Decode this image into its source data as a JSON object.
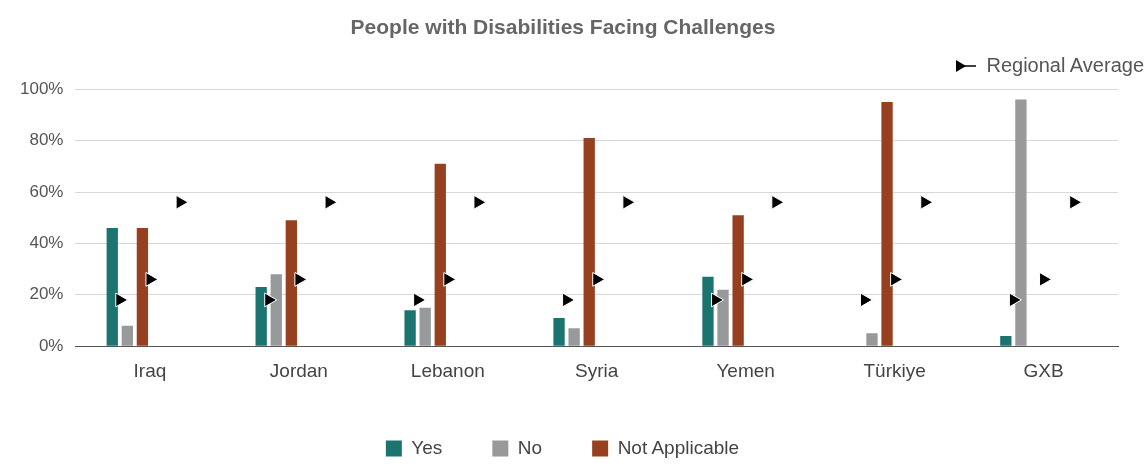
{
  "chart_data": {
    "type": "bar",
    "title": "People with Disabilities Facing Challenges",
    "categories": [
      "Iraq",
      "Jordan",
      "Lebanon",
      "Syria",
      "Yemen",
      "Türkiye",
      "GXB"
    ],
    "series": [
      {
        "name": "Yes",
        "color": "#1b7470",
        "values": [
          46,
          23,
          14,
          11,
          27,
          null,
          4
        ]
      },
      {
        "name": "No",
        "color": "#98999b",
        "values": [
          8,
          28,
          15,
          7,
          22,
          5,
          96
        ]
      },
      {
        "name": "Not Applicable",
        "color": "#97401f",
        "values": [
          46,
          49,
          71,
          81,
          51,
          95,
          null
        ]
      },
      {
        "type": "scatter",
        "name": "Regional Average",
        "color": "#000000",
        "values": [
          18,
          18,
          18,
          18,
          18,
          18,
          18
        ]
      },
      {
        "type": "scatter",
        "color": "#000000",
        "values": [
          26,
          26,
          26,
          26,
          26,
          26,
          26
        ]
      },
      {
        "type": "scatter",
        "color": "#000000",
        "values": [
          56,
          56,
          56,
          56,
          56,
          56,
          56
        ]
      }
    ],
    "ylim": [
      0,
      100
    ],
    "yticks": [
      {
        "value": 0,
        "label": "0%"
      },
      {
        "value": 20,
        "label": "20%"
      },
      {
        "value": 40,
        "label": "40%"
      },
      {
        "value": 60,
        "label": "60%"
      },
      {
        "value": 80,
        "label": "80%"
      },
      {
        "value": 100,
        "label": "100%"
      }
    ],
    "grid": "y",
    "legend": "bottom",
    "marker": "triangle"
  }
}
